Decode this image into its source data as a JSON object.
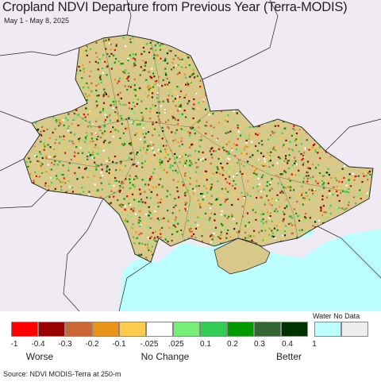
{
  "title": "Cropland NDVI Departure from Previous Year (Terra-MODIS)",
  "subtitle": "May 1 - May 8, 2025",
  "source": "Source: NDVI MODIS-Terra at 250-m",
  "legend": {
    "water_no_data_label": "Water No Data",
    "swatches": [
      {
        "name": "lt-neg-0.4",
        "color": "#ff0000"
      },
      {
        "name": "neg-0.4-to-neg-0.3",
        "color": "#990000"
      },
      {
        "name": "neg-0.3-to-neg-0.2",
        "color": "#cc6633"
      },
      {
        "name": "neg-0.2-to-neg-0.1",
        "color": "#e89419"
      },
      {
        "name": "neg-0.1-to-neg-0.025",
        "color": "#ffcc4d"
      },
      {
        "name": "no-change",
        "color": "#ffffff"
      },
      {
        "name": "0.025-to-0.1",
        "color": "#77ee77"
      },
      {
        "name": "0.1-to-0.2",
        "color": "#33cc55"
      },
      {
        "name": "0.2-to-0.3",
        "color": "#009900"
      },
      {
        "name": "0.3-to-0.4",
        "color": "#336633"
      },
      {
        "name": "gt-0.4",
        "color": "#003300"
      },
      {
        "name": "water",
        "color": "#bbffff"
      },
      {
        "name": "no-data",
        "color": "#eeeeee"
      }
    ],
    "ticks": [
      "-1",
      "-0.4",
      "-0.3",
      "-0.2",
      "-0.1",
      "-.025",
      ".025",
      "0.1",
      "0.2",
      "0.3",
      "0.4",
      "1"
    ],
    "categories": {
      "worse": "Worse",
      "no_change": "No Change",
      "better": "Better"
    }
  },
  "map": {
    "colors": {
      "background": "#f0ebf2",
      "sea": "#bbffff",
      "border": "#222222",
      "crop_base": "#d8c98a"
    }
  }
}
